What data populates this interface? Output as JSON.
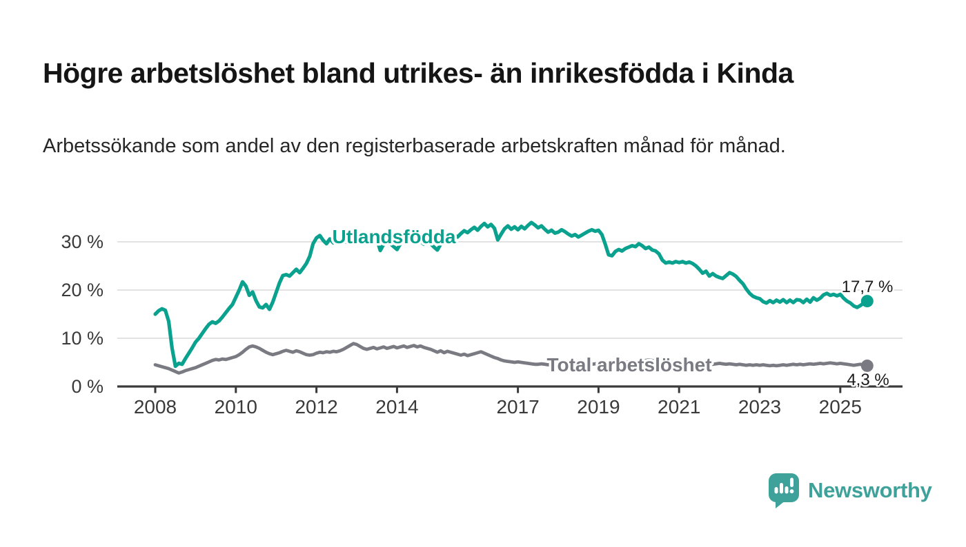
{
  "header": {
    "title": "Högre arbetslöshet bland utrikes- än inrikesfödda i Kinda",
    "subtitle": "Arbetssökande som andel av den registerbaserade arbetskraften månad för månad."
  },
  "footer": {
    "brand": "Newsworthy"
  },
  "colors": {
    "teal": "#0BA18F",
    "gray": "#7A7A82",
    "brand_teal": "#3EA29A",
    "axis": "#3A3A3A",
    "grid": "#E2E2E2",
    "tick_text": "#3A3A3A",
    "value_label_text": "#1A1A1A"
  },
  "chart_data": {
    "type": "line",
    "x_unit": "month",
    "x_start": "2008-01",
    "x_end": "2025-09",
    "x_ticks": [
      2008,
      2010,
      2012,
      2014,
      2017,
      2019,
      2021,
      2023,
      2025
    ],
    "y_ticks": [
      0,
      10,
      20,
      30
    ],
    "y_tick_labels": [
      "0 %",
      "10 %",
      "20 %",
      "30 %"
    ],
    "ylim": [
      0,
      35
    ],
    "grid": true,
    "legend_position": "inline-labels",
    "series": [
      {
        "name": "Utlandsfödda",
        "color": "#0BA18F",
        "end_value": 17.7,
        "end_label": "17,7 %",
        "values": [
          15.0,
          15.7,
          16.1,
          15.8,
          13.5,
          8.0,
          4.2,
          4.8,
          4.6,
          5.8,
          6.9,
          8.0,
          9.2,
          10.0,
          11.0,
          12.0,
          12.9,
          13.4,
          13.1,
          13.6,
          14.4,
          15.3,
          16.2,
          17.0,
          18.5,
          20.0,
          21.7,
          20.8,
          18.9,
          19.6,
          17.8,
          16.5,
          16.3,
          17.0,
          16.0,
          17.5,
          19.5,
          21.5,
          23.0,
          23.2,
          22.9,
          23.6,
          24.3,
          23.6,
          24.5,
          25.5,
          27.0,
          29.6,
          30.8,
          31.3,
          30.3,
          29.6,
          30.6,
          29.8,
          30.2,
          29.6,
          30.3,
          29.9,
          30.5,
          30.0,
          29.8,
          30.6,
          31.2,
          30.5,
          31.0,
          30.3,
          30.5,
          28.2,
          29.5,
          29.8,
          29.6,
          29.0,
          28.4,
          29.6,
          30.3,
          29.8,
          30.4,
          29.9,
          30.5,
          30.1,
          29.5,
          30.0,
          29.6,
          28.9,
          28.3,
          29.5,
          30.3,
          30.0,
          30.8,
          31.4,
          31.0,
          31.7,
          32.3,
          31.9,
          32.5,
          33.0,
          32.4,
          33.2,
          33.8,
          33.1,
          33.6,
          32.8,
          30.4,
          31.6,
          32.7,
          33.3,
          32.6,
          33.1,
          32.5,
          33.2,
          32.7,
          33.4,
          34.0,
          33.5,
          32.9,
          33.3,
          32.6,
          32.0,
          32.4,
          31.8,
          32.0,
          32.5,
          32.1,
          31.6,
          31.2,
          31.5,
          31.0,
          31.4,
          31.8,
          32.2,
          32.5,
          32.2,
          32.4,
          31.5,
          29.5,
          27.3,
          27.1,
          28.0,
          28.4,
          28.1,
          28.6,
          28.9,
          29.2,
          29.0,
          29.6,
          29.2,
          28.6,
          28.9,
          28.3,
          28.1,
          27.5,
          26.2,
          25.6,
          25.8,
          25.6,
          25.9,
          25.7,
          25.9,
          25.6,
          25.8,
          25.5,
          25.0,
          24.3,
          23.5,
          23.9,
          22.9,
          23.4,
          22.9,
          22.6,
          22.4,
          23.0,
          23.6,
          23.3,
          22.8,
          22.0,
          21.3,
          20.2,
          19.3,
          18.7,
          18.4,
          18.2,
          17.6,
          17.3,
          17.8,
          17.4,
          17.9,
          17.5,
          18.0,
          17.4,
          17.9,
          17.4,
          18.0,
          17.9,
          17.4,
          18.1,
          17.5,
          18.4,
          17.9,
          18.3,
          19.0,
          19.3,
          18.9,
          19.1,
          18.8,
          19.1,
          18.3,
          17.7,
          17.3,
          16.7,
          16.4,
          16.8,
          17.3,
          17.7
        ]
      },
      {
        "name": "Total arbetslöshet",
        "color": "#7A7A82",
        "end_value": 4.3,
        "end_label": "4,3 %",
        "values": [
          4.5,
          4.3,
          4.1,
          3.9,
          3.7,
          3.4,
          3.1,
          2.8,
          3.0,
          3.3,
          3.5,
          3.7,
          3.9,
          4.2,
          4.5,
          4.8,
          5.1,
          5.4,
          5.6,
          5.5,
          5.7,
          5.6,
          5.8,
          6.0,
          6.2,
          6.6,
          7.1,
          7.7,
          8.2,
          8.4,
          8.2,
          7.9,
          7.5,
          7.1,
          6.8,
          6.6,
          6.8,
          7.0,
          7.3,
          7.5,
          7.3,
          7.1,
          7.4,
          7.2,
          6.9,
          6.6,
          6.5,
          6.6,
          6.9,
          7.1,
          7.0,
          7.2,
          7.1,
          7.3,
          7.2,
          7.4,
          7.7,
          8.1,
          8.5,
          8.9,
          8.7,
          8.3,
          7.9,
          7.7,
          7.9,
          8.1,
          7.8,
          8.0,
          8.2,
          7.9,
          8.1,
          8.3,
          8.0,
          8.2,
          8.4,
          8.1,
          8.3,
          8.5,
          8.2,
          8.4,
          8.1,
          7.9,
          7.7,
          7.4,
          7.1,
          7.4,
          7.0,
          7.3,
          7.1,
          6.9,
          6.7,
          6.5,
          6.7,
          6.4,
          6.6,
          6.8,
          7.0,
          7.2,
          6.9,
          6.6,
          6.3,
          6.0,
          5.8,
          5.5,
          5.3,
          5.2,
          5.1,
          5.0,
          5.1,
          5.0,
          4.9,
          4.8,
          4.7,
          4.6,
          4.6,
          4.7,
          4.6,
          4.5,
          4.6,
          4.5,
          4.6,
          4.7,
          4.6,
          4.5,
          4.6,
          4.5,
          4.4,
          4.5,
          4.6,
          4.5,
          4.6,
          4.7,
          4.8,
          4.7,
          4.8,
          4.9,
          4.8,
          4.9,
          5.0,
          4.9,
          5.0,
          5.1,
          5.0,
          5.1,
          5.2,
          5.3,
          5.4,
          5.5,
          5.4,
          5.3,
          5.2,
          5.1,
          5.0,
          4.9,
          5.0,
          4.9,
          5.0,
          4.9,
          4.8,
          4.9,
          4.8,
          4.7,
          4.8,
          4.7,
          4.6,
          4.7,
          4.6,
          4.7,
          4.8,
          4.7,
          4.6,
          4.7,
          4.6,
          4.5,
          4.6,
          4.5,
          4.4,
          4.5,
          4.4,
          4.5,
          4.4,
          4.5,
          4.4,
          4.3,
          4.4,
          4.3,
          4.4,
          4.5,
          4.4,
          4.5,
          4.6,
          4.5,
          4.6,
          4.5,
          4.6,
          4.7,
          4.6,
          4.7,
          4.8,
          4.7,
          4.8,
          4.9,
          4.8,
          4.7,
          4.8,
          4.7,
          4.6,
          4.5,
          4.4,
          4.5,
          4.6,
          4.4,
          4.3
        ]
      }
    ]
  }
}
